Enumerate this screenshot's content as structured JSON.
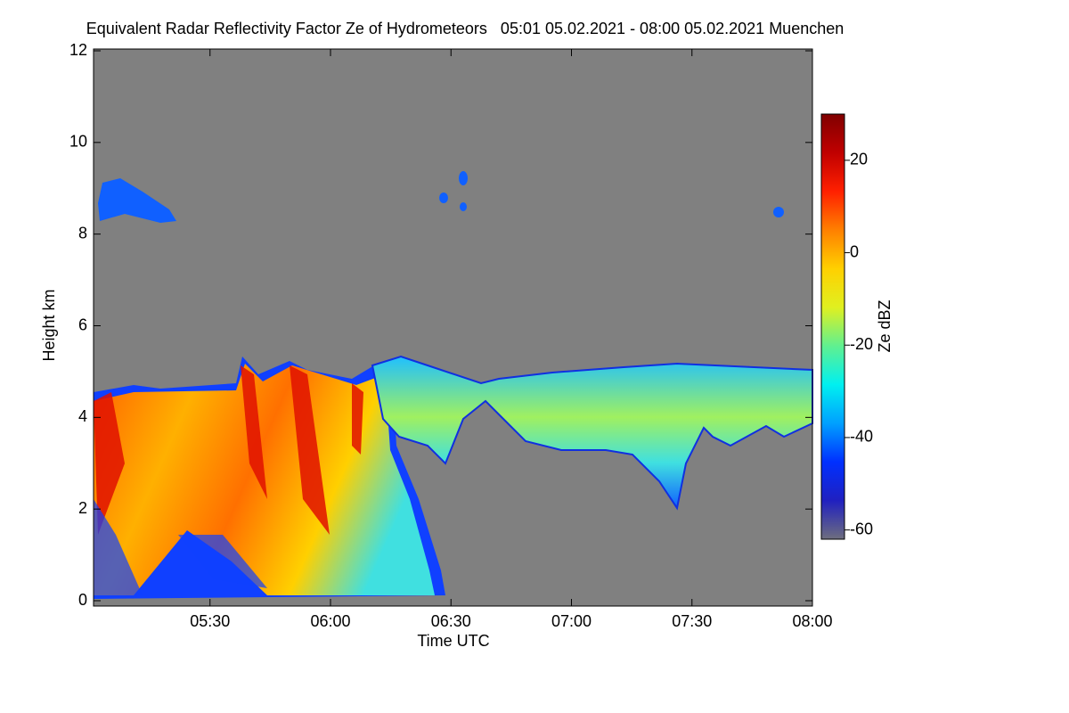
{
  "chart_data": {
    "type": "heatmap",
    "title": "Equivalent Radar Reflectivity Factor Ze of Hydrometeors   05:01 05.02.2021 - 08:00 05.02.2021 Muenchen",
    "x_label": "Time UTC",
    "y_label": "Height km",
    "xlim": [
      301,
      480
    ],
    "xticks": [
      {
        "value": 330,
        "label": "05:30"
      },
      {
        "value": 360,
        "label": "06:00"
      },
      {
        "value": 390,
        "label": "06:30"
      },
      {
        "value": 420,
        "label": "07:00"
      },
      {
        "value": 450,
        "label": "07:30"
      },
      {
        "value": 480,
        "label": "08:00"
      }
    ],
    "ylim": [
      0,
      12
    ],
    "yticks": [
      0,
      2,
      4,
      6,
      8,
      10,
      12
    ],
    "colorbar": {
      "label": "Ze dBZ",
      "lim": [
        -62,
        30
      ],
      "ticks": [
        -60,
        -40,
        -20,
        0,
        20
      ],
      "colormap": [
        "#6e6e7e",
        "#2020c0",
        "#0030ff",
        "#00a0ff",
        "#00f0f0",
        "#60f090",
        "#e0f020",
        "#ffd000",
        "#ff8000",
        "#ff2000",
        "#c00000",
        "#800000"
      ]
    }
  }
}
